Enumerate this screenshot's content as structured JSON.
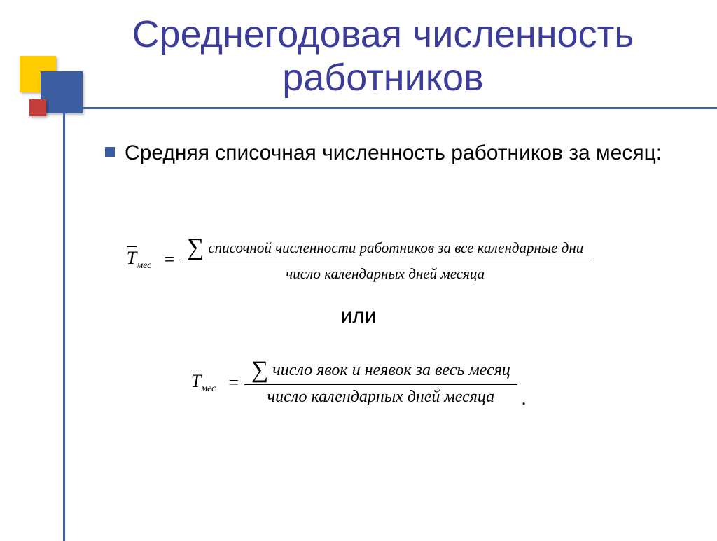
{
  "colors": {
    "title": "#3c3c9a",
    "accent": "#3c5da0",
    "yellow": "#ffcc00",
    "red": "#c33d3d",
    "text": "#000000",
    "background": "#ffffff"
  },
  "title": "Среднегодовая численность работников",
  "bullet": {
    "text": "Средняя списочная численность работников за месяц:"
  },
  "formula1": {
    "lhs_symbol": "T",
    "lhs_subscript": "мес",
    "numerator": "списочной численности работников за все календарные дни",
    "denominator": "число календарных дней месяца"
  },
  "or_label": "или",
  "formula2": {
    "lhs_symbol": "T",
    "lhs_subscript": "мес",
    "numerator": "число явок и неявок за весь месяц",
    "denominator": "число календарных дней месяца"
  },
  "typography": {
    "title_fontsize": 54,
    "bullet_fontsize": 30,
    "formula_fontsize": 24,
    "formula_font": "Times New Roman"
  }
}
